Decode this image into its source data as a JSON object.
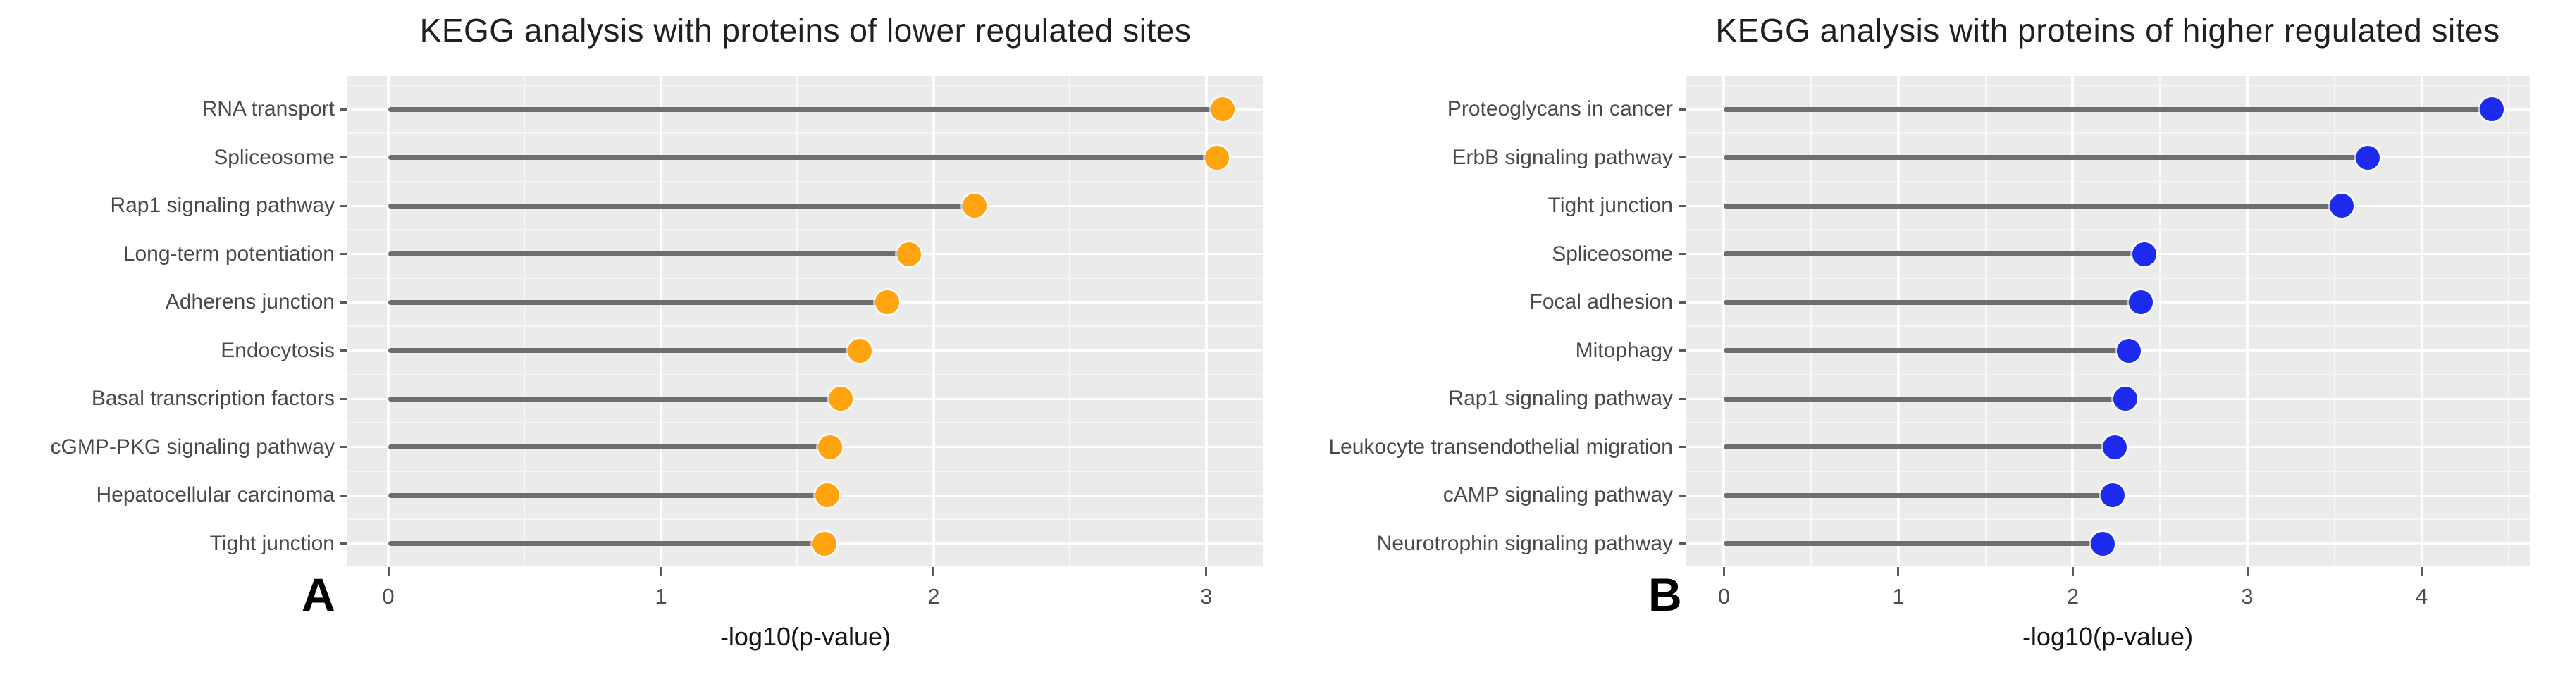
{
  "figure": {
    "background": "#ffffff",
    "panel_bg": "#EBEBEB",
    "grid_color": "#ffffff"
  },
  "chart_data": [
    {
      "type": "scatter",
      "variant": "lollipop-horizontal",
      "panel_label": "A",
      "title": "KEGG analysis with proteins of lower regulated sites",
      "xlabel": "-log10(p-value)",
      "ylabel": "",
      "legend": "none",
      "grid": true,
      "categories": [
        "RNA transport",
        "Spliceosome",
        "Rap1 signaling pathway",
        "Long-term potentiation",
        "Adherens junction",
        "Endocytosis",
        "Basal transcription factors",
        "cGMP-PKG signaling pathway",
        "Hepatocellular carcinoma",
        "Tight junction"
      ],
      "values": [
        3.06,
        3.04,
        2.15,
        1.91,
        1.83,
        1.73,
        1.66,
        1.62,
        1.61,
        1.6
      ],
      "x_ticks": [
        0,
        1,
        2,
        3
      ],
      "xlim": [
        -0.15,
        3.21
      ],
      "dot_color": "#FFA30F",
      "stem_color": "#6E6E6E",
      "panel_bg": "#EBEBEB"
    },
    {
      "type": "scatter",
      "variant": "lollipop-horizontal",
      "panel_label": "B",
      "title": "KEGG analysis with proteins of higher regulated sites",
      "xlabel": "-log10(p-value)",
      "ylabel": "",
      "legend": "none",
      "grid": true,
      "categories": [
        "Proteoglycans in cancer",
        "ErbB signaling pathway",
        "Tight junction",
        "Spliceosome",
        "Focal adhesion",
        "Mitophagy",
        "Rap1 signaling pathway",
        "Leukocyte transendothelial migration",
        "cAMP signaling pathway",
        "Neurotrophin signaling pathway"
      ],
      "values": [
        4.4,
        3.69,
        3.54,
        2.41,
        2.39,
        2.32,
        2.3,
        2.24,
        2.23,
        2.17
      ],
      "x_ticks": [
        0,
        1,
        2,
        3,
        4
      ],
      "xlim": [
        -0.22,
        4.62
      ],
      "dot_color": "#1C2BEE",
      "stem_color": "#6E6E6E",
      "panel_bg": "#EBEBEB"
    }
  ]
}
